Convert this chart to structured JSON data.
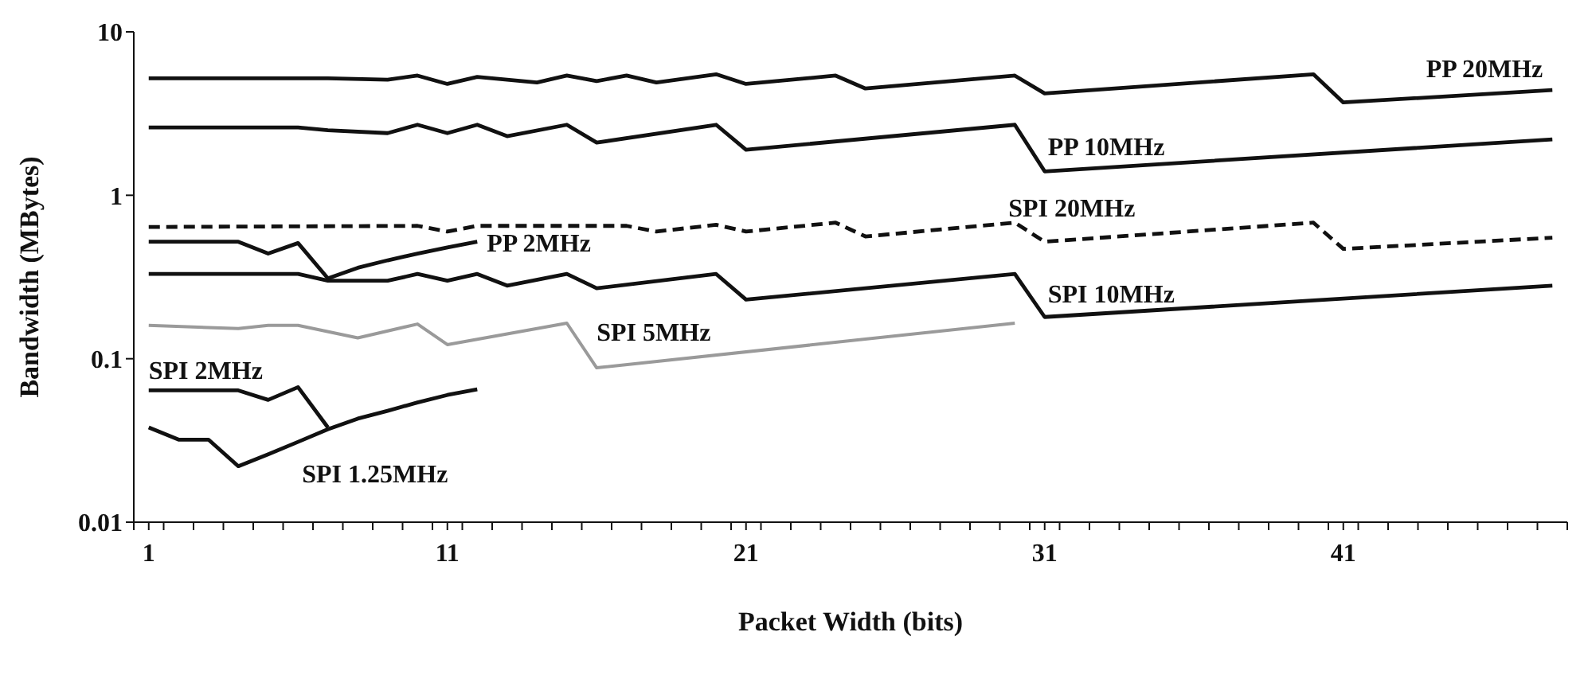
{
  "chart_data": {
    "type": "line",
    "xlabel": "Packet Width (bits)",
    "ylabel": "Bandwidth (MBytes)",
    "log": "y",
    "xlim": [
      0.5,
      48.5
    ],
    "xticks": [
      {
        "value": 1,
        "label": "1"
      },
      {
        "value": 11,
        "label": "11"
      },
      {
        "value": 21,
        "label": "21"
      },
      {
        "value": 31,
        "label": "31"
      },
      {
        "value": 41,
        "label": "41"
      },
      {
        "value": 0.5,
        "label": null
      },
      {
        "value": 1.5,
        "label": null
      },
      {
        "value": 2.5,
        "label": null
      },
      {
        "value": 3.5,
        "label": null
      },
      {
        "value": 4.5,
        "label": null
      },
      {
        "value": 5.5,
        "label": null
      },
      {
        "value": 6.5,
        "label": null
      },
      {
        "value": 7.5,
        "label": null
      },
      {
        "value": 8.5,
        "label": null
      },
      {
        "value": 9.5,
        "label": null
      },
      {
        "value": 10.5,
        "label": null
      },
      {
        "value": 11.5,
        "label": null
      },
      {
        "value": 12.5,
        "label": null
      },
      {
        "value": 13.5,
        "label": null
      },
      {
        "value": 14.5,
        "label": null
      },
      {
        "value": 15.5,
        "label": null
      },
      {
        "value": 16.5,
        "label": null
      },
      {
        "value": 17.5,
        "label": null
      },
      {
        "value": 18.5,
        "label": null
      },
      {
        "value": 19.5,
        "label": null
      },
      {
        "value": 20.5,
        "label": null
      },
      {
        "value": 21.5,
        "label": null
      },
      {
        "value": 22.5,
        "label": null
      },
      {
        "value": 23.5,
        "label": null
      },
      {
        "value": 24.5,
        "label": null
      },
      {
        "value": 25.5,
        "label": null
      },
      {
        "value": 26.5,
        "label": null
      },
      {
        "value": 27.5,
        "label": null
      },
      {
        "value": 28.5,
        "label": null
      },
      {
        "value": 29.5,
        "label": null
      },
      {
        "value": 30.5,
        "label": null
      },
      {
        "value": 31.5,
        "label": null
      },
      {
        "value": 32.5,
        "label": null
      },
      {
        "value": 33.5,
        "label": null
      },
      {
        "value": 34.5,
        "label": null
      },
      {
        "value": 35.5,
        "label": null
      },
      {
        "value": 36.5,
        "label": null
      },
      {
        "value": 37.5,
        "label": null
      },
      {
        "value": 38.5,
        "label": null
      },
      {
        "value": 39.5,
        "label": null
      },
      {
        "value": 40.5,
        "label": null
      },
      {
        "value": 41.5,
        "label": null
      },
      {
        "value": 42.5,
        "label": null
      },
      {
        "value": 43.5,
        "label": null
      },
      {
        "value": 44.5,
        "label": null
      },
      {
        "value": 45.5,
        "label": null
      },
      {
        "value": 46.5,
        "label": null
      },
      {
        "value": 47.5,
        "label": null
      },
      {
        "value": 48.5,
        "label": null
      }
    ],
    "ylim": [
      0.01,
      10
    ],
    "yticks": [
      0.01,
      0.1,
      1,
      10
    ],
    "marker": "none",
    "series": [
      {
        "name": "PP 20MHz",
        "color": "#111111",
        "line_style": "solid",
        "x": [
          1,
          7,
          9,
          10,
          11,
          12,
          14,
          15,
          16,
          17,
          18,
          20,
          21,
          24,
          25,
          30,
          31,
          40,
          41,
          48
        ],
        "values": [
          5.2,
          5.2,
          5.1,
          5.4,
          4.8,
          5.3,
          4.9,
          5.4,
          5.0,
          5.4,
          4.9,
          5.5,
          4.8,
          5.4,
          4.5,
          5.4,
          4.2,
          5.5,
          3.7,
          4.4
        ]
      },
      {
        "name": "PP 10MHz",
        "color": "#111111",
        "line_style": "solid",
        "x": [
          1,
          6,
          7,
          9,
          10,
          11,
          12,
          13,
          15,
          16,
          20,
          21,
          30,
          31,
          48
        ],
        "values": [
          2.6,
          2.6,
          2.5,
          2.4,
          2.7,
          2.4,
          2.7,
          2.3,
          2.7,
          2.1,
          2.7,
          1.9,
          2.7,
          1.4,
          2.2
        ]
      },
      {
        "name": "SPI 20MHz",
        "color": "#111111",
        "line_style": "dashed",
        "x": [
          1,
          10,
          11,
          12,
          17,
          18,
          20,
          21,
          24,
          25,
          30,
          31,
          40,
          41,
          48
        ],
        "values": [
          0.64,
          0.65,
          0.6,
          0.65,
          0.65,
          0.6,
          0.66,
          0.6,
          0.68,
          0.56,
          0.68,
          0.52,
          0.68,
          0.47,
          0.55
        ]
      },
      {
        "name": "PP 2MHz",
        "color": "#111111",
        "line_style": "solid",
        "x": [
          1,
          4,
          5,
          6,
          7,
          8,
          9,
          10,
          11,
          12
        ],
        "values": [
          0.52,
          0.52,
          0.44,
          0.51,
          0.31,
          0.36,
          0.4,
          0.44,
          0.48,
          0.52
        ]
      },
      {
        "name": "SPI 10MHz",
        "color": "#111111",
        "line_style": "solid",
        "x": [
          1,
          6,
          7,
          9,
          10,
          11,
          12,
          13,
          15,
          16,
          20,
          21,
          30,
          31,
          48
        ],
        "values": [
          0.33,
          0.33,
          0.3,
          0.3,
          0.33,
          0.3,
          0.33,
          0.28,
          0.33,
          0.27,
          0.33,
          0.23,
          0.33,
          0.18,
          0.28
        ]
      },
      {
        "name": "SPI 5MHz",
        "color": "#9a9a9a",
        "line_style": "solid",
        "x": [
          1,
          4,
          5,
          6,
          8,
          10,
          11,
          15,
          16,
          30
        ],
        "values": [
          0.16,
          0.153,
          0.16,
          0.16,
          0.134,
          0.163,
          0.122,
          0.165,
          0.088,
          0.165
        ]
      },
      {
        "name": "SPI 2MHz",
        "color": "#111111",
        "line_style": "solid",
        "x": [
          1,
          4,
          5,
          6,
          7
        ],
        "values": [
          0.064,
          0.064,
          0.056,
          0.067,
          0.038
        ]
      },
      {
        "name": "SPI 1.25MHz",
        "color": "#111111",
        "line_style": "solid",
        "x": [
          1,
          2,
          3,
          4,
          5,
          6,
          7,
          8,
          9,
          10,
          11,
          12
        ],
        "values": [
          0.038,
          0.032,
          0.032,
          0.022,
          0.026,
          0.031,
          0.037,
          0.043,
          0.048,
          0.054,
          0.06,
          0.065
        ]
      }
    ]
  }
}
